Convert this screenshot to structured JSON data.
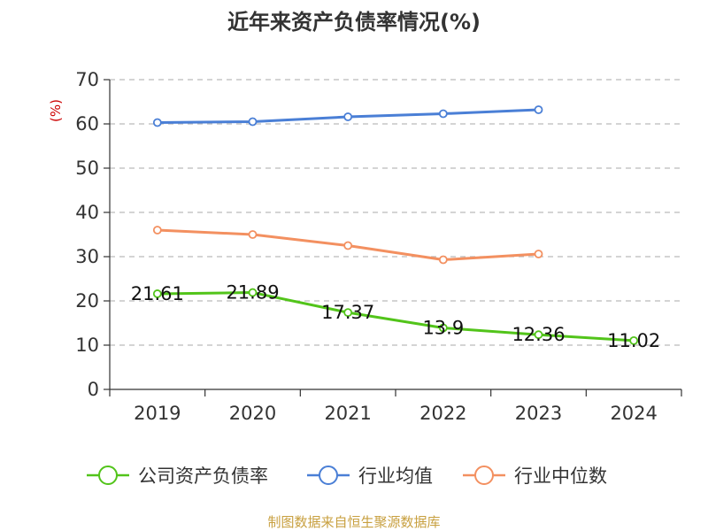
{
  "chart_data": {
    "type": "line",
    "title": "近年来资产负债率情况(%)",
    "ylabel": "(%)",
    "categories": [
      "2019",
      "2020",
      "2021",
      "2022",
      "2023",
      "2024"
    ],
    "ylim": [
      0,
      70
    ],
    "yticks": [
      0,
      10,
      20,
      30,
      40,
      50,
      60,
      70
    ],
    "grid": true,
    "legend_position": "bottom",
    "series": [
      {
        "name": "公司资产负债率",
        "color": "#52c41a",
        "values": [
          21.61,
          21.89,
          17.37,
          13.9,
          12.36,
          11.02
        ],
        "labels": [
          "21.61",
          "21.89",
          "17.37",
          "13.9",
          "12.36",
          "11.02"
        ]
      },
      {
        "name": "行业均值",
        "color": "#4a7fd6",
        "values": [
          60.3,
          60.5,
          61.6,
          62.3,
          63.2,
          null
        ]
      },
      {
        "name": "行业中位数",
        "color": "#f39060",
        "values": [
          36.0,
          35.0,
          32.5,
          29.3,
          30.6,
          null
        ]
      }
    ]
  },
  "source": "制图数据来自恒生聚源数据库",
  "colors": {
    "axis": "#333333",
    "grid": "#bbbbbb",
    "ylabel": "#cc0000",
    "source": "#c8a040"
  }
}
